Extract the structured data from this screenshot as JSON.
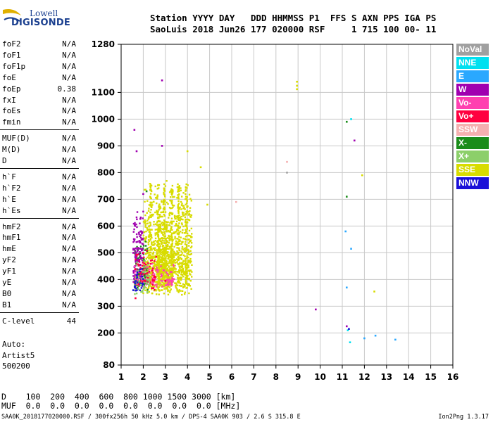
{
  "logo": {
    "line1": "Lowell",
    "line2": "DIGISONDE"
  },
  "header": {
    "line1": "Station YYYY DAY   DDD HHMMSS P1  FFS S AXN PPS IGA PS",
    "line2": "SaoLuis 2018 Jun26 177 020000 RSF     1 715 100 00- 11"
  },
  "params": [
    {
      "name": "foF2",
      "value": "N/A"
    },
    {
      "name": "foF1",
      "value": "N/A"
    },
    {
      "name": "foF1p",
      "value": "N/A"
    },
    {
      "name": "foE",
      "value": "N/A"
    },
    {
      "name": "foEp",
      "value": "0.38"
    },
    {
      "name": "fxI",
      "value": "N/A"
    },
    {
      "name": "foEs",
      "value": "N/A"
    },
    {
      "name": "fmin",
      "value": "N/A"
    },
    {
      "name": "MUF(D)",
      "value": "N/A"
    },
    {
      "name": "M(D)",
      "value": "N/A"
    },
    {
      "name": "D",
      "value": "N/A"
    },
    {
      "name": "h`F",
      "value": "N/A"
    },
    {
      "name": "h`F2",
      "value": "N/A"
    },
    {
      "name": "h`E",
      "value": "N/A"
    },
    {
      "name": "h`Es",
      "value": "N/A"
    },
    {
      "name": "hmF2",
      "value": "N/A"
    },
    {
      "name": "hmF1",
      "value": "N/A"
    },
    {
      "name": "hmE",
      "value": "N/A"
    },
    {
      "name": "yF2",
      "value": "N/A"
    },
    {
      "name": "yF1",
      "value": "N/A"
    },
    {
      "name": "yE",
      "value": "N/A"
    },
    {
      "name": "B0",
      "value": "N/A"
    },
    {
      "name": "B1",
      "value": "N/A"
    },
    {
      "name": "C-level",
      "value": "44"
    }
  ],
  "auto": {
    "l1": "Auto:",
    "l2": "Artist5",
    "l3": "500200"
  },
  "bottom": {
    "d_row": "D    100  200  400  600  800 1000 1500 3000 [km]",
    "muf_row": "MUF  0.0  0.0  0.0  0.0  0.0  0.0  0.0  0.0 [MHz]"
  },
  "footer": {
    "left": "SAA0K_2018177020000.RSF / 300fx256h 50 kHz 5.0 km / DPS-4 SAA0K 903 / 2.6 S 315.8 E",
    "right": "Ion2Png 1.3.17"
  },
  "legend": [
    {
      "label": "NoVal",
      "color": "#a0a0a0"
    },
    {
      "label": "NNE",
      "color": "#00e0f0"
    },
    {
      "label": "E",
      "color": "#2aa8ff"
    },
    {
      "label": "W",
      "color": "#a000b0"
    },
    {
      "label": "Vo-",
      "color": "#ff40b0"
    },
    {
      "label": "Vo+",
      "color": "#ff0040"
    },
    {
      "label": "SSW",
      "color": "#f5b0b0"
    },
    {
      "label": "X-",
      "color": "#1a8c1a"
    },
    {
      "label": "X+",
      "color": "#8ccf6a"
    },
    {
      "label": "SSE",
      "color": "#d8dc00"
    },
    {
      "label": "NNW",
      "color": "#1a10d8"
    }
  ],
  "chart_data": {
    "type": "scatter",
    "title": "",
    "xlabel": "",
    "ylabel": "",
    "xlim": [
      1,
      16
    ],
    "ylim": [
      80,
      1280
    ],
    "xticks": [
      1,
      2,
      3,
      4,
      5,
      6,
      7,
      8,
      9,
      10,
      11,
      12,
      13,
      14,
      15,
      16
    ],
    "yticks": [
      80,
      200,
      300,
      400,
      500,
      600,
      700,
      800,
      900,
      1000,
      1100,
      1280
    ],
    "grid": true,
    "legend_position": "right",
    "series": [
      {
        "name": "NNE",
        "color": "#00e0f0",
        "points": [
          [
            11.4,
            1000
          ],
          [
            11.25,
            210
          ],
          [
            11.35,
            165
          ]
        ]
      },
      {
        "name": "E",
        "color": "#2aa8ff",
        "points": [
          [
            11.15,
            580
          ],
          [
            11.4,
            515
          ],
          [
            11.2,
            370
          ],
          [
            12.0,
            180
          ],
          [
            13.4,
            175
          ],
          [
            12.5,
            190
          ]
        ]
      },
      {
        "name": "W",
        "color": "#a000b0",
        "points": [
          [
            1.6,
            960
          ],
          [
            2.85,
            1145
          ],
          [
            1.7,
            880
          ],
          [
            2.0,
            720
          ],
          [
            2.85,
            900
          ],
          [
            11.55,
            920
          ],
          [
            11.2,
            225
          ],
          [
            9.8,
            288
          ]
        ]
      },
      {
        "name": "Vo-",
        "color": "#ff40b0",
        "points": [
          [
            3.3,
            380
          ],
          [
            1.75,
            400
          ],
          [
            2.5,
            420
          ]
        ]
      },
      {
        "name": "Vo+",
        "color": "#ff0040",
        "points": [
          [
            1.65,
            330
          ],
          [
            2.0,
            500
          ],
          [
            3.0,
            395
          ]
        ]
      },
      {
        "name": "SSW",
        "color": "#f5b0b0",
        "points": [
          [
            6.2,
            690
          ],
          [
            8.5,
            840
          ]
        ]
      },
      {
        "name": "X-",
        "color": "#1a8c1a",
        "points": [
          [
            11.2,
            990
          ],
          [
            11.2,
            710
          ],
          [
            2.15,
            730
          ],
          [
            1.8,
            420
          ]
        ]
      },
      {
        "name": "X+",
        "color": "#8ccf6a",
        "points": [
          [
            1.9,
            380
          ]
        ]
      },
      {
        "name": "SSE",
        "color": "#d8dc00",
        "points": [
          [
            8.95,
            1140
          ],
          [
            8.95,
            1125
          ],
          [
            8.95,
            1112
          ],
          [
            12.45,
            355
          ],
          [
            11.9,
            790
          ],
          [
            4.0,
            880
          ],
          [
            4.6,
            820
          ],
          [
            4.9,
            680
          ]
        ]
      },
      {
        "name": "NNW",
        "color": "#1a10d8",
        "points": [
          [
            11.3,
            215
          ],
          [
            1.55,
            360
          ]
        ]
      },
      {
        "name": "NoVal",
        "color": "#a0a0a0",
        "points": [
          [
            8.5,
            800
          ]
        ]
      }
    ],
    "clusters": [
      {
        "name": "SSE",
        "color": "#d8dc00",
        "x": [
          2.0,
          4.2
        ],
        "y": [
          340,
          780
        ],
        "count": 900
      },
      {
        "name": "SSE",
        "color": "#d8dc00",
        "x": [
          2.6,
          3.3
        ],
        "y": [
          360,
          650
        ],
        "count": 300
      },
      {
        "name": "X-",
        "color": "#1a8c1a",
        "x": [
          1.6,
          2.2
        ],
        "y": [
          360,
          560
        ],
        "count": 120
      },
      {
        "name": "W",
        "color": "#a000b0",
        "x": [
          1.55,
          2.0
        ],
        "y": [
          380,
          700
        ],
        "count": 140
      },
      {
        "name": "Vo-",
        "color": "#ff40b0",
        "x": [
          1.6,
          3.4
        ],
        "y": [
          370,
          470
        ],
        "count": 140
      },
      {
        "name": "Vo+",
        "color": "#ff0040",
        "x": [
          1.6,
          2.6
        ],
        "y": [
          360,
          520
        ],
        "count": 90
      },
      {
        "name": "X+",
        "color": "#8ccf6a",
        "x": [
          1.6,
          2.3
        ],
        "y": [
          340,
          500
        ],
        "count": 60
      },
      {
        "name": "NNW",
        "color": "#1a10d8",
        "x": [
          1.6,
          2.0
        ],
        "y": [
          350,
          460
        ],
        "count": 30
      }
    ]
  }
}
